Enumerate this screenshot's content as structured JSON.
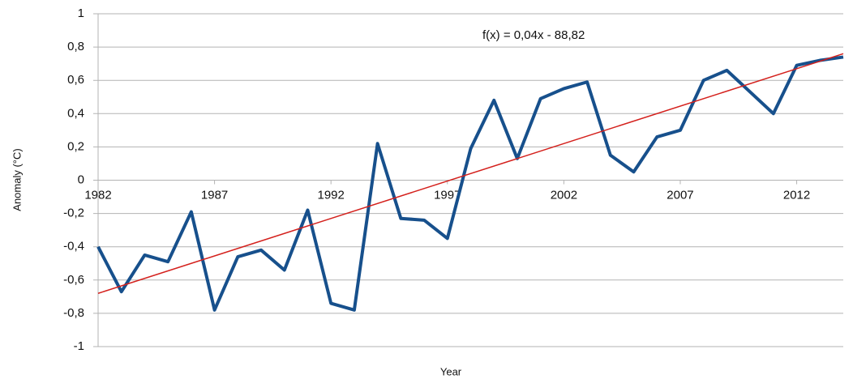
{
  "chart_data": {
    "type": "line",
    "xlabel": "Year",
    "ylabel": "Anomaly (°C)",
    "x": [
      1982,
      1983,
      1984,
      1985,
      1986,
      1987,
      1988,
      1989,
      1990,
      1991,
      1992,
      1993,
      1994,
      1995,
      1996,
      1997,
      1998,
      1999,
      2000,
      2001,
      2002,
      2003,
      2004,
      2005,
      2006,
      2007,
      2008,
      2009,
      2010,
      2011,
      2012,
      2013,
      2014
    ],
    "series": [
      {
        "color": "#17508c",
        "values": [
          -0.4,
          -0.67,
          -0.45,
          -0.49,
          -0.19,
          -0.78,
          -0.46,
          -0.42,
          -0.54,
          -0.18,
          -0.74,
          -0.78,
          0.22,
          -0.23,
          -0.24,
          -0.35,
          0.19,
          0.48,
          0.13,
          0.49,
          0.55,
          0.59,
          0.15,
          0.05,
          0.26,
          0.3,
          0.6,
          0.66,
          0.53,
          0.4,
          0.69,
          0.72,
          0.74
        ]
      }
    ],
    "trendline": {
      "label": "f(x) = 0,04x - 88,82",
      "color": "#d4201c",
      "x": [
        1982,
        2014
      ],
      "values": [
        -0.68,
        0.76
      ]
    },
    "xlim": [
      1982,
      2014
    ],
    "xticks": [
      1982,
      1987,
      1992,
      1997,
      2002,
      2007,
      2012
    ],
    "ylim": [
      -1,
      1
    ],
    "yticks": [
      -1,
      {
        "value": -0.8,
        "label": "-0,8"
      },
      {
        "value": -0.6,
        "label": "-0,6"
      },
      {
        "value": -0.4,
        "label": "-0,4"
      },
      {
        "value": -0.2,
        "label": "-0,2"
      },
      0,
      {
        "value": 0.2,
        "label": "0,2"
      },
      {
        "value": 0.4,
        "label": "0,4"
      },
      {
        "value": 0.6,
        "label": "0,6"
      },
      {
        "value": 0.8,
        "label": "0,8"
      },
      1
    ],
    "grid": true
  }
}
